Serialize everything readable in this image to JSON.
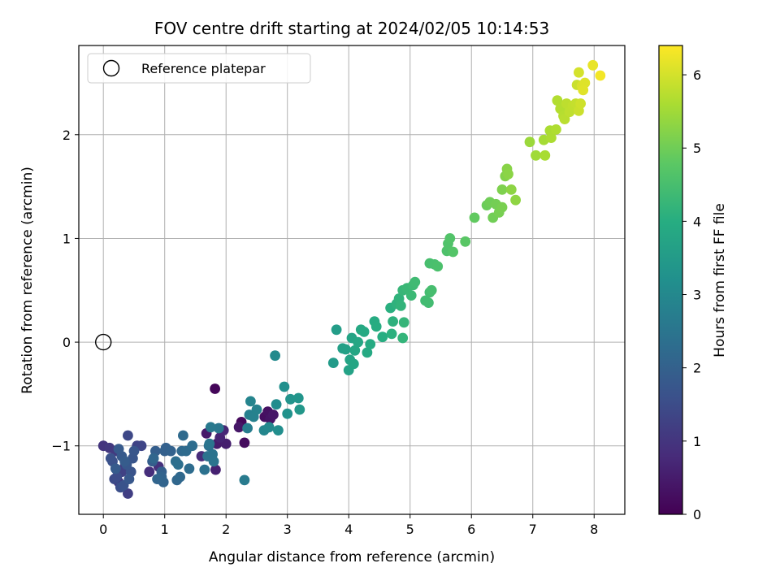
{
  "chart_data": {
    "type": "scatter",
    "title": "FOV centre drift starting at 2024/02/05 10:14:53",
    "xlabel": "Angular distance from reference (arcmin)",
    "ylabel": "Rotation from reference (arcmin)",
    "xlim": [
      -0.4,
      8.5
    ],
    "ylim": [
      -1.66,
      2.86
    ],
    "x_ticks": [
      0,
      1,
      2,
      3,
      4,
      5,
      6,
      7,
      8
    ],
    "x_tick_labels": [
      "0",
      "1",
      "2",
      "3",
      "4",
      "5",
      "6",
      "7",
      "8"
    ],
    "y_ticks": [
      -1,
      0,
      1,
      2
    ],
    "y_tick_labels": [
      "−1",
      "0",
      "1",
      "2"
    ],
    "grid": true,
    "legend": {
      "placement": "top-left",
      "entries": [
        {
          "label": "Reference platepar",
          "marker": "open-circle"
        }
      ]
    },
    "reference_point": {
      "x": 0,
      "y": 0
    },
    "colormap": "viridis",
    "colorbar": {
      "label": "Hours from first FF file",
      "range": [
        0,
        6.4
      ],
      "ticks": [
        0,
        1,
        2,
        3,
        4,
        5,
        6
      ],
      "tick_labels": [
        "0",
        "1",
        "2",
        "3",
        "4",
        "5",
        "6"
      ]
    },
    "color_stops": [
      "#440154",
      "#472c7a",
      "#3b518b",
      "#2c718e",
      "#21908d",
      "#27ad81",
      "#5cc863",
      "#aadc32",
      "#fde725"
    ],
    "points": [
      [
        1.82,
        -0.45,
        0.1
      ],
      [
        2.25,
        -0.77,
        0.15
      ],
      [
        2.3,
        -0.97,
        0.2
      ],
      [
        2.63,
        -0.72,
        0.25
      ],
      [
        2.68,
        -0.67,
        0.3
      ],
      [
        2.72,
        -0.74,
        0.35
      ],
      [
        2.77,
        -0.7,
        0.4
      ],
      [
        1.68,
        -0.88,
        0.45
      ],
      [
        1.85,
        -0.98,
        0.5
      ],
      [
        2.0,
        -0.98,
        0.55
      ],
      [
        1.83,
        -1.23,
        0.6
      ],
      [
        1.9,
        -0.92,
        0.65
      ],
      [
        1.96,
        -0.85,
        0.7
      ],
      [
        2.21,
        -0.82,
        0.4
      ],
      [
        1.6,
        -1.1,
        0.8
      ],
      [
        0.75,
        -1.25,
        0.85
      ],
      [
        0.9,
        -1.2,
        0.9
      ],
      [
        0.25,
        -1.35,
        0.95
      ],
      [
        0.0,
        -1.0,
        1.0
      ],
      [
        0.1,
        -1.02,
        1.05
      ],
      [
        0.2,
        -1.05,
        1.1
      ],
      [
        0.35,
        -1.2,
        1.15
      ],
      [
        0.4,
        -1.46,
        1.2
      ],
      [
        0.3,
        -1.25,
        1.25
      ],
      [
        0.55,
        -1.0,
        1.3
      ],
      [
        0.62,
        -1.0,
        1.35
      ],
      [
        0.4,
        -0.9,
        1.4
      ],
      [
        0.18,
        -1.32,
        1.45
      ],
      [
        0.22,
        -1.3,
        1.5
      ],
      [
        0.28,
        -1.4,
        1.55
      ],
      [
        0.15,
        -1.15,
        1.6
      ],
      [
        0.12,
        -1.12,
        1.62
      ],
      [
        0.33,
        -1.38,
        1.65
      ],
      [
        0.45,
        -1.25,
        1.68
      ],
      [
        0.48,
        -1.12,
        1.7
      ],
      [
        0.5,
        -1.05,
        1.72
      ],
      [
        0.38,
        -1.18,
        1.75
      ],
      [
        0.42,
        -1.32,
        1.78
      ],
      [
        0.3,
        -1.1,
        1.8
      ],
      [
        0.25,
        -1.03,
        1.82
      ],
      [
        0.2,
        -1.22,
        1.85
      ],
      [
        0.35,
        -1.15,
        1.88
      ],
      [
        0.8,
        -1.15,
        1.9
      ],
      [
        0.85,
        -1.05,
        1.92
      ],
      [
        0.95,
        -1.25,
        1.95
      ],
      [
        1.0,
        -1.05,
        1.98
      ],
      [
        1.02,
        -1.02,
        2.0
      ],
      [
        1.1,
        -1.05,
        2.02
      ],
      [
        0.95,
        -1.3,
        2.05
      ],
      [
        0.98,
        -1.35,
        2.08
      ],
      [
        0.88,
        -1.32,
        2.1
      ],
      [
        0.82,
        -1.12,
        2.12
      ],
      [
        1.2,
        -1.33,
        2.15
      ],
      [
        1.25,
        -1.3,
        2.18
      ],
      [
        1.28,
        -1.05,
        2.2
      ],
      [
        1.3,
        -0.9,
        2.22
      ],
      [
        1.35,
        -1.05,
        2.25
      ],
      [
        1.4,
        -1.22,
        2.28
      ],
      [
        1.45,
        -1.0,
        2.3
      ],
      [
        1.18,
        -1.15,
        2.32
      ],
      [
        1.22,
        -1.18,
        2.35
      ],
      [
        1.72,
        -1.0,
        2.38
      ],
      [
        1.65,
        -1.23,
        2.4
      ],
      [
        1.7,
        -1.1,
        2.42
      ],
      [
        1.78,
        -1.08,
        2.45
      ],
      [
        1.8,
        -1.15,
        2.48
      ],
      [
        1.73,
        -0.98,
        2.5
      ],
      [
        1.88,
        -0.83,
        2.55
      ],
      [
        1.75,
        -0.82,
        2.6
      ],
      [
        2.3,
        -1.33,
        2.65
      ],
      [
        2.35,
        -0.83,
        2.7
      ],
      [
        2.38,
        -0.7,
        2.75
      ],
      [
        2.45,
        -0.72,
        2.8
      ],
      [
        2.5,
        -0.65,
        2.85
      ],
      [
        2.4,
        -0.57,
        2.9
      ],
      [
        2.62,
        -0.85,
        2.95
      ],
      [
        2.7,
        -0.82,
        3.0
      ],
      [
        2.8,
        -0.13,
        3.05
      ],
      [
        2.82,
        -0.6,
        3.1
      ],
      [
        2.85,
        -0.85,
        3.15
      ],
      [
        2.95,
        -0.43,
        3.2
      ],
      [
        3.0,
        -0.69,
        3.25
      ],
      [
        3.05,
        -0.55,
        3.3
      ],
      [
        3.18,
        -0.54,
        3.35
      ],
      [
        3.2,
        -0.65,
        3.4
      ],
      [
        3.75,
        -0.2,
        3.5
      ],
      [
        3.8,
        0.12,
        3.55
      ],
      [
        3.9,
        -0.06,
        3.6
      ],
      [
        3.95,
        -0.07,
        3.65
      ],
      [
        4.0,
        -0.27,
        3.7
      ],
      [
        4.02,
        -0.17,
        3.72
      ],
      [
        4.05,
        0.04,
        3.75
      ],
      [
        4.08,
        -0.21,
        3.78
      ],
      [
        4.1,
        -0.08,
        3.8
      ],
      [
        4.15,
        0.0,
        3.82
      ],
      [
        4.2,
        0.12,
        3.85
      ],
      [
        4.25,
        0.1,
        3.88
      ],
      [
        4.3,
        -0.1,
        3.9
      ],
      [
        4.35,
        -0.02,
        3.92
      ],
      [
        4.42,
        0.2,
        3.95
      ],
      [
        4.45,
        0.15,
        3.98
      ],
      [
        4.55,
        0.05,
        4.0
      ],
      [
        4.68,
        0.33,
        4.05
      ],
      [
        4.7,
        0.08,
        4.08
      ],
      [
        4.72,
        0.2,
        4.1
      ],
      [
        4.78,
        0.37,
        4.12
      ],
      [
        4.82,
        0.42,
        4.15
      ],
      [
        4.85,
        0.35,
        4.18
      ],
      [
        4.88,
        0.04,
        4.2
      ],
      [
        4.9,
        0.19,
        4.22
      ],
      [
        4.88,
        0.5,
        4.25
      ],
      [
        4.95,
        0.52,
        4.3
      ],
      [
        5.02,
        0.45,
        4.32
      ],
      [
        5.05,
        0.55,
        4.35
      ],
      [
        5.08,
        0.58,
        4.38
      ],
      [
        5.25,
        0.4,
        4.4
      ],
      [
        5.3,
        0.38,
        4.42
      ],
      [
        5.32,
        0.48,
        4.45
      ],
      [
        5.35,
        0.5,
        4.48
      ],
      [
        5.32,
        0.76,
        4.5
      ],
      [
        5.4,
        0.75,
        4.52
      ],
      [
        5.45,
        0.73,
        4.55
      ],
      [
        5.6,
        0.88,
        4.6
      ],
      [
        5.62,
        0.95,
        4.62
      ],
      [
        5.65,
        1.0,
        4.65
      ],
      [
        5.7,
        0.87,
        4.68
      ],
      [
        5.9,
        0.97,
        4.75
      ],
      [
        6.05,
        1.2,
        4.85
      ],
      [
        6.25,
        1.32,
        4.95
      ],
      [
        6.3,
        1.35,
        5.0
      ],
      [
        6.35,
        1.2,
        5.02
      ],
      [
        6.4,
        1.33,
        5.05
      ],
      [
        6.45,
        1.25,
        5.08
      ],
      [
        6.5,
        1.3,
        5.1
      ],
      [
        6.5,
        1.47,
        5.15
      ],
      [
        6.55,
        1.6,
        5.2
      ],
      [
        6.58,
        1.67,
        5.25
      ],
      [
        6.6,
        1.62,
        5.28
      ],
      [
        6.65,
        1.47,
        5.3
      ],
      [
        6.72,
        1.37,
        5.32
      ],
      [
        6.95,
        1.93,
        5.45
      ],
      [
        7.05,
        1.8,
        5.5
      ],
      [
        7.18,
        1.95,
        5.55
      ],
      [
        7.2,
        1.8,
        5.58
      ],
      [
        7.28,
        2.04,
        5.6
      ],
      [
        7.3,
        1.97,
        5.62
      ],
      [
        7.38,
        2.05,
        5.65
      ],
      [
        7.4,
        2.33,
        5.68
      ],
      [
        7.45,
        2.25,
        5.7
      ],
      [
        7.5,
        2.18,
        5.72
      ],
      [
        7.52,
        2.15,
        5.75
      ],
      [
        7.55,
        2.3,
        5.78
      ],
      [
        7.6,
        2.22,
        5.8
      ],
      [
        7.65,
        2.28,
        5.82
      ],
      [
        7.7,
        2.3,
        5.85
      ],
      [
        7.72,
        2.48,
        5.9
      ],
      [
        7.75,
        2.23,
        5.92
      ],
      [
        7.78,
        2.3,
        5.95
      ],
      [
        7.75,
        2.6,
        6.0
      ],
      [
        7.8,
        2.47,
        6.05
      ],
      [
        7.85,
        2.5,
        6.1
      ],
      [
        7.82,
        2.43,
        6.12
      ],
      [
        7.98,
        2.67,
        6.2
      ],
      [
        8.1,
        2.57,
        6.3
      ]
    ]
  }
}
